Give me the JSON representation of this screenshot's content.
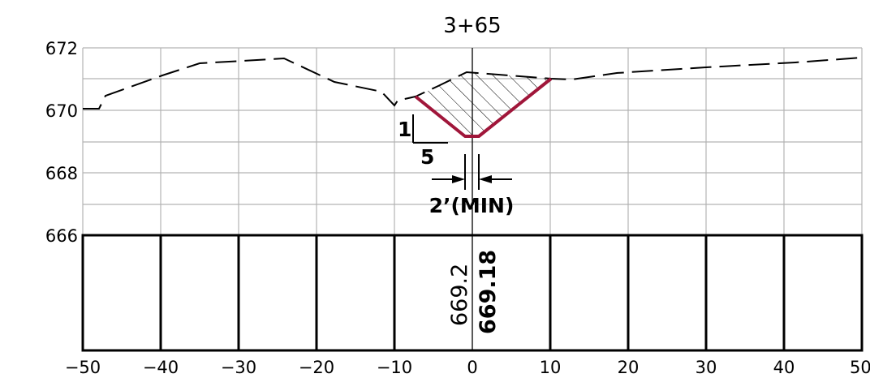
{
  "station_label": "3+65",
  "y_tick_labels": [
    "672",
    "670",
    "668",
    "666"
  ],
  "x_tick_labels": [
    "−50",
    "−40",
    "−30",
    "−20",
    "−10",
    "0",
    "10",
    "20",
    "30",
    "40",
    "50"
  ],
  "slope_rise": "1",
  "slope_run": "5",
  "bottom_width_note": "2’(MIN)",
  "existing_elevation": "669.2",
  "proposed_elevation": "669.18",
  "colors": {
    "proposed_ditch": "#a0163a",
    "grid": "#b3b3b3",
    "line": "#000000"
  },
  "icons": [
    "dimension-arrow-icon"
  ]
}
